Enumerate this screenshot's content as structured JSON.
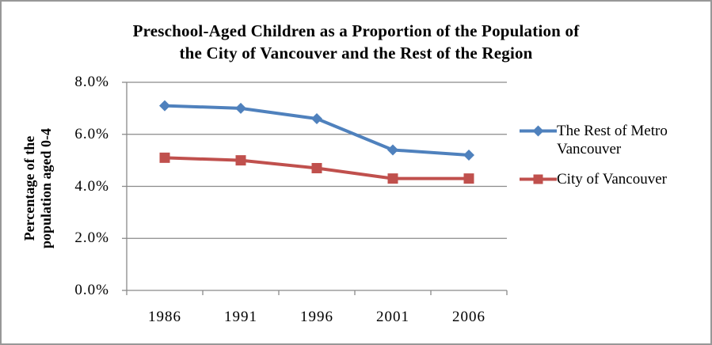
{
  "frame": {
    "border_color": "#989898",
    "background": "#ffffff"
  },
  "colors": {
    "grid": "#8a8a8a",
    "axis": "#8a8a8a",
    "text": "#000000",
    "series_blue": "#4F81BD",
    "series_red": "#C0504D"
  },
  "chart_data": {
    "type": "line",
    "title": "Preschool-Aged Children as a Proportion of the Population of the City of Vancouver and the Rest of the Region",
    "title_lines": [
      "Preschool-Aged Children as a Proportion of the Population of",
      "the City of Vancouver and the Rest of the Region"
    ],
    "ylabel": "Percentage of the population aged 0-4",
    "ylabel_lines": [
      "Percentage of the",
      "population aged 0-4"
    ],
    "xlabel": "",
    "categories": [
      "1986",
      "1991",
      "1996",
      "2001",
      "2006"
    ],
    "series": [
      {
        "name": "The Rest of Metro Vancouver",
        "values": [
          7.1,
          7.0,
          6.6,
          5.4,
          5.2
        ],
        "color": "#4F81BD",
        "marker": "diamond"
      },
      {
        "name": "City of Vancouver",
        "values": [
          5.1,
          5.0,
          4.7,
          4.3,
          4.3
        ],
        "color": "#C0504D",
        "marker": "square"
      }
    ],
    "y_ticks": [
      {
        "v": 0,
        "label": "0.0%"
      },
      {
        "v": 2,
        "label": "2.0%"
      },
      {
        "v": 4,
        "label": "4.0%"
      },
      {
        "v": 6,
        "label": "6.0%"
      },
      {
        "v": 8,
        "label": "8.0%"
      }
    ],
    "ylim": [
      0,
      8
    ],
    "unit": "percent",
    "grid": true,
    "legend_position": "right"
  }
}
